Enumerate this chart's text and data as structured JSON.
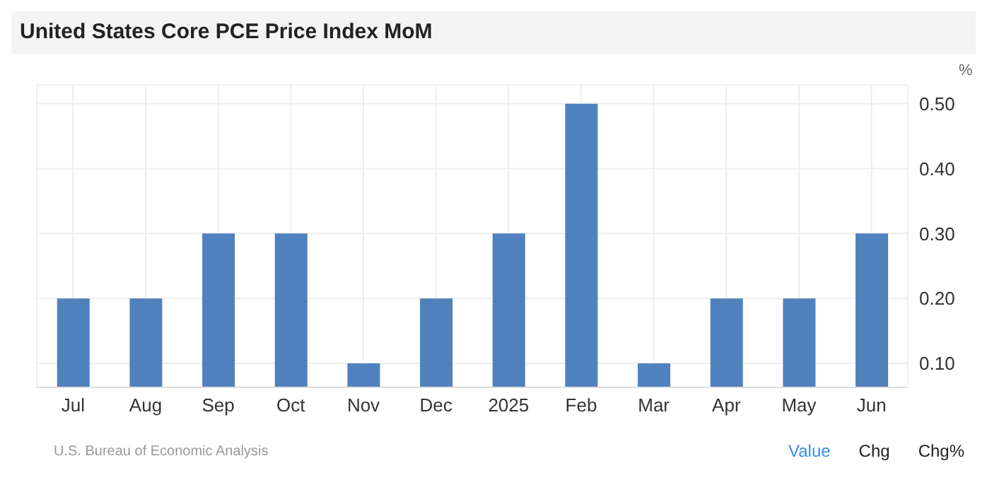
{
  "chart_data": {
    "type": "bar",
    "title": "United States Core PCE Price Index MoM",
    "ylabel": "%",
    "categories": [
      "Jul",
      "Aug",
      "Sep",
      "Oct",
      "Nov",
      "Dec",
      "2025",
      "Feb",
      "Mar",
      "Apr",
      "May",
      "Jun"
    ],
    "values": [
      0.2,
      0.2,
      0.3,
      0.3,
      0.1,
      0.2,
      0.3,
      0.5,
      0.1,
      0.2,
      0.2,
      0.3
    ],
    "color": "#4f81bd",
    "ylim": [
      0.063,
      0.529
    ],
    "yticks": [
      {
        "value": 0.1,
        "label": "0.10"
      },
      {
        "value": 0.2,
        "label": "0.20"
      },
      {
        "value": 0.3,
        "label": "0.30"
      },
      {
        "value": 0.4,
        "label": "0.40"
      },
      {
        "value": 0.5,
        "label": "0.50"
      }
    ],
    "grid": true,
    "annotations": [
      "U.S. Bureau of Economic Analysis",
      "Value",
      "Chg",
      "Chg%"
    ]
  }
}
